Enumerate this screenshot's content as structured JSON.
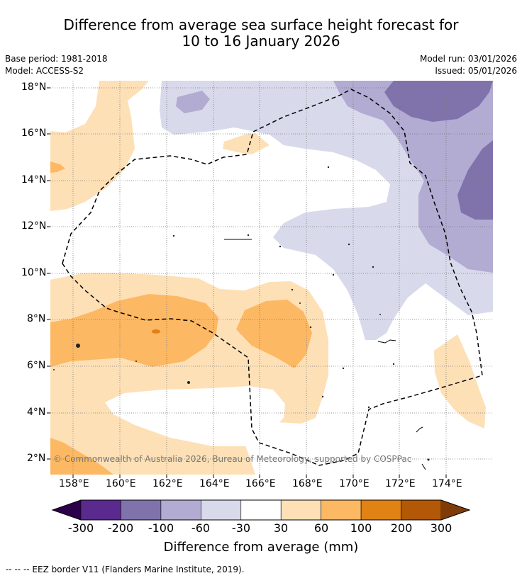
{
  "title": {
    "line1": "Difference from average sea surface height forecast for",
    "line2": "10 to 16 January 2026"
  },
  "meta": {
    "base_period": "Base period: 1981-2018",
    "model": "Model: ACCESS-S2",
    "model_run": "Model run: 03/01/2026",
    "issued": "Issued: 05/01/2026"
  },
  "map": {
    "lat_labels": [
      "18°N",
      "16°N",
      "14°N",
      "12°N",
      "10°N",
      "8°N",
      "6°N",
      "4°N",
      "2°N"
    ],
    "lon_labels": [
      "158°E",
      "160°E",
      "162°E",
      "164°E",
      "166°E",
      "168°E",
      "170°E",
      "172°E",
      "174°E"
    ],
    "copyright": "© Commonwealth of Australia 2026, Bureau of Meteorology, supported by COSPPac"
  },
  "colorbar": {
    "colors": [
      "#2d004b",
      "#5a2a8e",
      "#8073ac",
      "#b2abd2",
      "#d8daeb",
      "#ffffff",
      "#fee0b6",
      "#fdb863",
      "#e08214",
      "#b35806",
      "#7f3b08"
    ],
    "tick_labels": [
      "-300",
      "-200",
      "-100",
      "-60",
      "-30",
      "30",
      "60",
      "100",
      "200",
      "300"
    ],
    "title": "Difference from average (mm)"
  },
  "footnote": "--  --  -- EEZ border V11 (Flanders Marine Institute, 2019)."
}
